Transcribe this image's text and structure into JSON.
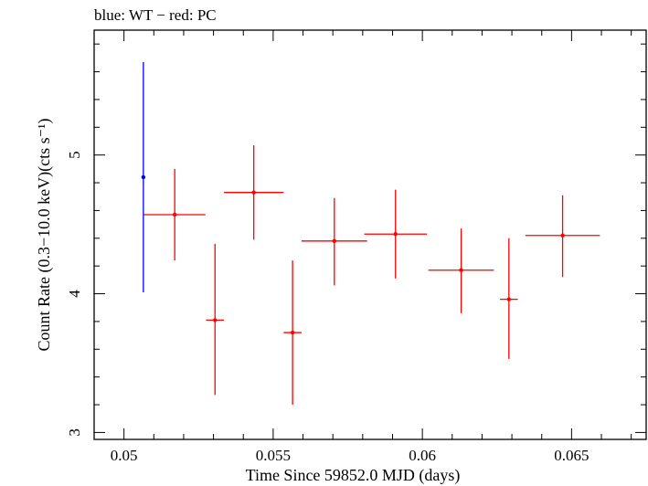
{
  "chart_data": {
    "type": "scatter",
    "title": "blue: WT − red: PC",
    "xlabel": "Time Since 59852.0 MJD (days)",
    "ylabel": "Count Rate (0.3−10.0 keV)(cts s⁻¹)",
    "xlim": [
      0.049,
      0.0675
    ],
    "ylim": [
      2.95,
      5.9
    ],
    "xticks": [
      0.05,
      0.055,
      0.06,
      0.065
    ],
    "xtick_labels": [
      "0.05",
      "0.055",
      "0.06",
      "0.065"
    ],
    "yticks": [
      3,
      4,
      5
    ],
    "ytick_labels": [
      "3",
      "4",
      "5"
    ],
    "grid": false,
    "series": [
      {
        "mode": "WT",
        "color": "#0000ff",
        "points": [
          {
            "x": 0.05065,
            "y": 4.84,
            "xerr_lo": 0.0,
            "xerr_hi": 0.0,
            "y_lo": 4.01,
            "y_hi": 5.67
          }
        ]
      },
      {
        "mode": "PC",
        "color": "#ff0000",
        "points": [
          {
            "x": 0.0517,
            "y": 4.57,
            "xerr_lo": 0.00103,
            "xerr_hi": 0.00103,
            "y_lo": 4.24,
            "y_hi": 4.9
          },
          {
            "x": 0.05305,
            "y": 3.81,
            "xerr_lo": 0.0003,
            "xerr_hi": 0.0003,
            "y_lo": 3.27,
            "y_hi": 4.36
          },
          {
            "x": 0.05435,
            "y": 4.73,
            "xerr_lo": 0.001,
            "xerr_hi": 0.001,
            "y_lo": 4.39,
            "y_hi": 5.07
          },
          {
            "x": 0.05565,
            "y": 3.72,
            "xerr_lo": 0.0003,
            "xerr_hi": 0.0003,
            "y_lo": 3.2,
            "y_hi": 4.24
          },
          {
            "x": 0.05705,
            "y": 4.38,
            "xerr_lo": 0.0011,
            "xerr_hi": 0.0011,
            "y_lo": 4.06,
            "y_hi": 4.69
          },
          {
            "x": 0.0591,
            "y": 4.43,
            "xerr_lo": 0.00105,
            "xerr_hi": 0.00105,
            "y_lo": 4.11,
            "y_hi": 4.75
          },
          {
            "x": 0.0613,
            "y": 4.17,
            "xerr_lo": 0.0011,
            "xerr_hi": 0.0011,
            "y_lo": 3.86,
            "y_hi": 4.47
          },
          {
            "x": 0.0629,
            "y": 3.96,
            "xerr_lo": 0.0003,
            "xerr_hi": 0.0003,
            "y_lo": 3.53,
            "y_hi": 4.4
          },
          {
            "x": 0.0647,
            "y": 4.42,
            "xerr_lo": 0.00125,
            "xerr_hi": 0.00125,
            "y_lo": 4.12,
            "y_hi": 4.71
          }
        ]
      }
    ]
  }
}
